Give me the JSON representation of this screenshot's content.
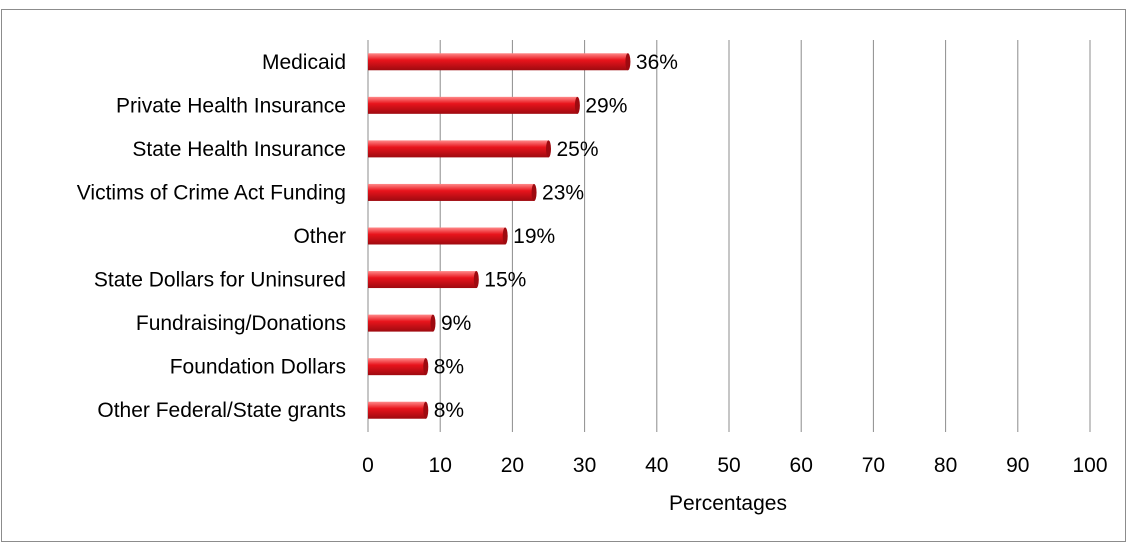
{
  "chart_data": {
    "type": "bar",
    "orientation": "horizontal",
    "categories": [
      "Medicaid",
      "Private Health Insurance",
      "State Health Insurance",
      "Victims of Crime Act Funding",
      "Other",
      "State Dollars for Uninsured",
      "Fundraising/Donations",
      "Foundation Dollars",
      "Other Federal/State grants"
    ],
    "values": [
      36,
      29,
      25,
      23,
      19,
      15,
      9,
      8,
      8
    ],
    "data_labels": [
      "36%",
      "29%",
      "25%",
      "23%",
      "19%",
      "15%",
      "9%",
      "8%",
      "8%"
    ],
    "xlabel": "Percentages",
    "ylabel": "",
    "xlim": [
      0,
      100
    ],
    "xticks": [
      0,
      10,
      20,
      30,
      40,
      50,
      60,
      70,
      80,
      90,
      100
    ],
    "grid": "vertical",
    "legend": "none",
    "bar_color": "#e8141c",
    "bar_highlight": "#ff8a8a",
    "bar_shadow": "#9e0a10"
  }
}
